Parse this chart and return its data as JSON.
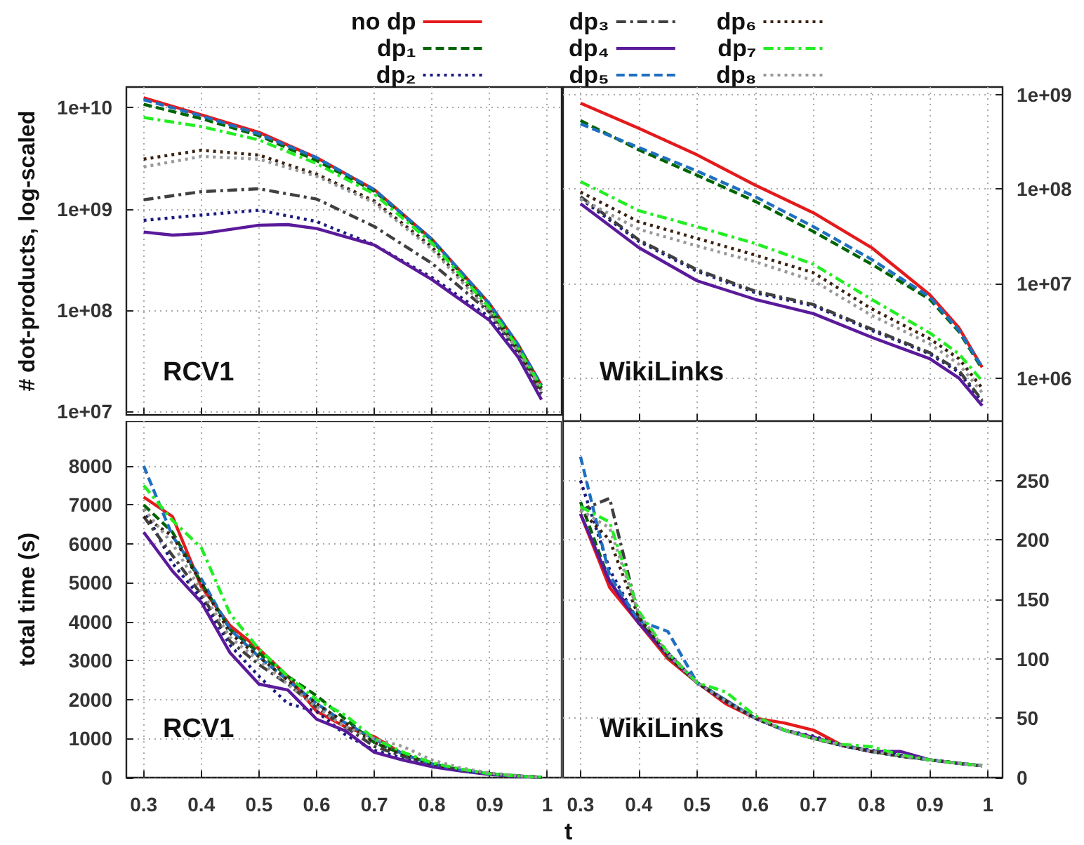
{
  "chart_data": [
    {
      "type": "line",
      "ylabel": "# dot-products, log-scaled",
      "annotations": [
        "RCV1"
      ],
      "legend": "top",
      "grid": true,
      "log": true,
      "tick_labels": "y",
      "xlim": [
        0.27,
        1.025
      ],
      "xticks": [
        0.3,
        0.4,
        0.5,
        0.6,
        0.7,
        0.8,
        0.9,
        1
      ],
      "ylim": [
        9200000.0,
        16000000000.0
      ],
      "yticks": [
        {
          "value": 10000000.0,
          "label": "1e+07"
        },
        {
          "value": 100000000.0,
          "label": "1e+08"
        },
        {
          "value": 1000000000.0,
          "label": "1e+09"
        },
        {
          "value": 10000000000.0,
          "label": "1e+10"
        }
      ],
      "x": [
        0.3,
        0.4,
        0.5,
        0.6,
        0.7,
        0.8,
        0.9,
        0.95,
        0.99
      ],
      "series": [
        {
          "name": "no dp",
          "color": "#e41a1c",
          "line_style": "solid",
          "values": [
            12500000000.0,
            8500000000.0,
            5700000000.0,
            3200000000.0,
            1550000000.0,
            500000000.0,
            115000000.0,
            45000000.0,
            18000000.0
          ]
        },
        {
          "name": "dp₁",
          "color": "#006400",
          "line_style": "dashed",
          "values": [
            10800000000.0,
            7800000000.0,
            5300000000.0,
            3000000000.0,
            1500000000.0,
            490000000.0,
            110000000.0,
            44000000.0,
            17000000.0
          ]
        },
        {
          "name": "dp₂",
          "color": "#1a1a80",
          "line_style": "dotted",
          "values": [
            770000000.0,
            870000000.0,
            970000000.0,
            750000000.0,
            440000000.0,
            210000000.0,
            85000000.0,
            36000000.0,
            14000000.0
          ]
        },
        {
          "name": "dp₃",
          "color": "#404040",
          "line_style": "dashdot",
          "values": [
            1230000000.0,
            1480000000.0,
            1580000000.0,
            1250000000.0,
            670000000.0,
            290000000.0,
            95000000.0,
            39000000.0,
            15000000.0
          ]
        },
        {
          "name": "dp₄",
          "color": "#5a1a9a",
          "line_style": "solid",
          "x": [
            0.3,
            0.35,
            0.4,
            0.5,
            0.55,
            0.6,
            0.7,
            0.8,
            0.9,
            0.95,
            0.99
          ],
          "values": [
            590000000.0,
            550000000.0,
            570000000.0,
            690000000.0,
            700000000.0,
            640000000.0,
            440000000.0,
            200000000.0,
            79000000.0,
            34000000.0,
            13000000.0
          ]
        },
        {
          "name": "dp₅",
          "color": "#1f6fc0",
          "line_style": "dashed",
          "values": [
            12000000000.0,
            8300000000.0,
            5500000000.0,
            3200000000.0,
            1550000000.0,
            500000000.0,
            115000000.0,
            45000000.0,
            18000000.0
          ]
        },
        {
          "name": "dp₆",
          "color": "#3b2210",
          "line_style": "dotted",
          "values": [
            3100000000.0,
            3800000000.0,
            3400000000.0,
            2200000000.0,
            1200000000.0,
            420000000.0,
            100000000.0,
            40000000.0,
            16000000.0
          ]
        },
        {
          "name": "dp₇",
          "color": "#22ee22",
          "line_style": "dashdot",
          "values": [
            8000000000.0,
            6500000000.0,
            4800000000.0,
            2800000000.0,
            1400000000.0,
            460000000.0,
            105000000.0,
            42000000.0,
            17000000.0
          ]
        },
        {
          "name": "dp₈",
          "color": "#999999",
          "line_style": "dotted",
          "values": [
            2600000000.0,
            3300000000.0,
            3100000000.0,
            2100000000.0,
            1150000000.0,
            400000000.0,
            95000000.0,
            39000000.0,
            16000000.0
          ]
        }
      ]
    },
    {
      "type": "line",
      "annotations": [
        "WikiLinks"
      ],
      "grid": true,
      "log": "y2",
      "tick_labels": "y",
      "xlim": [
        0.27,
        1.025
      ],
      "xticks": [
        0.3,
        0.4,
        0.5,
        0.6,
        0.7,
        0.8,
        0.9,
        1
      ],
      "y2lim": [
        350000.0,
        1200000000.0
      ],
      "y2ticks": [
        {
          "value": 1000000.0,
          "label": "1e+06"
        },
        {
          "value": 10000000.0,
          "label": "1e+07"
        },
        {
          "value": 100000000.0,
          "label": "1e+08"
        },
        {
          "value": 1000000000.0,
          "label": "1e+09"
        }
      ],
      "x": [
        0.3,
        0.4,
        0.5,
        0.6,
        0.7,
        0.8,
        0.9,
        0.95,
        0.99
      ],
      "series": [
        {
          "name": "no dp",
          "color": "#e41a1c",
          "line_style": "solid",
          "axis": "y2",
          "values": [
            810000000.0,
            440000000.0,
            230000000.0,
            110000000.0,
            56000000.0,
            24000000.0,
            7600000.0,
            3400000.0,
            1300000.0
          ]
        },
        {
          "name": "dp₁",
          "color": "#006400",
          "line_style": "dashed",
          "axis": "y2",
          "values": [
            530000000.0,
            260000000.0,
            140000000.0,
            74000000.0,
            35500000.0,
            16000000.0,
            6800000.0,
            3100000.0,
            1250000.0
          ]
        },
        {
          "name": "dp₂",
          "color": "#1a1a80",
          "line_style": "dotted",
          "axis": "y2",
          "values": [
            79000000.0,
            28000000.0,
            13500000.0,
            8000000.0,
            5800000.0,
            3200000.0,
            1800000.0,
            1150000.0,
            560000.0
          ]
        },
        {
          "name": "dp₃",
          "color": "#404040",
          "line_style": "dashdot",
          "axis": "y2",
          "values": [
            83000000.0,
            29000000.0,
            14000000.0,
            8300000.0,
            6000000.0,
            3300000.0,
            1850000.0,
            1200000.0,
            580000.0
          ]
        },
        {
          "name": "dp₄",
          "color": "#5a1a9a",
          "line_style": "solid",
          "axis": "y2",
          "values": [
            70000000.0,
            24000000.0,
            10700000.0,
            6800000.0,
            4800000.0,
            2700000.0,
            1600000.0,
            1000000.0,
            510000.0
          ]
        },
        {
          "name": "dp₅",
          "color": "#1f6fc0",
          "line_style": "dashed",
          "axis": "y2",
          "values": [
            490000000.0,
            275000000.0,
            155000000.0,
            83000000.0,
            40000000.0,
            18000000.0,
            7200000.0,
            3200000.0,
            1300000.0
          ]
        },
        {
          "name": "dp₆",
          "color": "#3b2210",
          "line_style": "dotted",
          "axis": "y2",
          "values": [
            93000000.0,
            45000000.0,
            30000000.0,
            20000000.0,
            13000000.0,
            5400000.0,
            2600000.0,
            1600000.0,
            780000.0
          ]
        },
        {
          "name": "dp₇",
          "color": "#22ee22",
          "line_style": "dashdot",
          "axis": "y2",
          "values": [
            120000000.0,
            59000000.0,
            40000000.0,
            26500000.0,
            16000000.0,
            6800000.0,
            3000000.0,
            1800000.0,
            930000.0
          ]
        },
        {
          "name": "dp₈",
          "color": "#999999",
          "line_style": "dotted",
          "axis": "y2",
          "values": [
            79000000.0,
            37500000.0,
            25000000.0,
            17000000.0,
            10700000.0,
            4600000.0,
            2300000.0,
            1400000.0,
            700000.0
          ]
        }
      ]
    },
    {
      "type": "line",
      "ylabel": "total time (s)",
      "annotations": [
        "RCV1"
      ],
      "grid": true,
      "xlim": [
        0.27,
        1.025
      ],
      "xticks": [
        0.3,
        0.4,
        0.5,
        0.6,
        0.7,
        0.8,
        0.9,
        1
      ],
      "ylim": [
        0,
        9150
      ],
      "yticks": [
        0,
        1000,
        2000,
        3000,
        4000,
        5000,
        6000,
        7000,
        8000
      ],
      "x": [
        0.3,
        0.35,
        0.4,
        0.45,
        0.5,
        0.55,
        0.6,
        0.65,
        0.7,
        0.75,
        0.8,
        0.85,
        0.9,
        0.95,
        0.99
      ],
      "series": [
        {
          "name": "no dp",
          "color": "#e41a1c",
          "line_style": "solid",
          "values": [
            7200,
            6700,
            4900,
            3900,
            3300,
            2600,
            1700,
            1300,
            1050,
            600,
            350,
            null,
            null,
            null,
            null
          ]
        },
        {
          "name": "dp₁",
          "color": "#006400",
          "line_style": "dashed",
          "values": [
            7000,
            6300,
            5000,
            3800,
            3200,
            2600,
            2100,
            1500,
            900,
            600,
            350,
            200,
            100,
            40,
            10
          ]
        },
        {
          "name": "dp₂",
          "color": "#1a1a80",
          "line_style": "dotted",
          "values": [
            6900,
            5500,
            4600,
            3400,
            2600,
            1900,
            1700,
            1100,
            700,
            500,
            300,
            180,
            90,
            40,
            10
          ]
        },
        {
          "name": "dp₃",
          "color": "#404040",
          "line_style": "dashdot",
          "values": [
            6700,
            5700,
            4700,
            3500,
            2900,
            2400,
            1800,
            1300,
            800,
            550,
            330,
            190,
            90,
            40,
            10
          ]
        },
        {
          "name": "dp₄",
          "color": "#5a1a9a",
          "line_style": "solid",
          "values": [
            6300,
            5300,
            4500,
            3200,
            2400,
            2250,
            1500,
            1200,
            650,
            450,
            280,
            170,
            80,
            30,
            10
          ]
        },
        {
          "name": "dp₅",
          "color": "#1f6fc0",
          "line_style": "dashed",
          "values": [
            8000,
            6200,
            5100,
            3800,
            3100,
            2500,
            1900,
            1400,
            1000,
            600,
            350,
            200,
            100,
            40,
            10
          ]
        },
        {
          "name": "dp₆",
          "color": "#3b2210",
          "line_style": "dotted",
          "values": [
            6700,
            6200,
            5000,
            3700,
            3100,
            2500,
            1900,
            1400,
            900,
            600,
            350,
            200,
            100,
            40,
            10
          ]
        },
        {
          "name": "dp₇",
          "color": "#22ee22",
          "line_style": "dashdot",
          "values": [
            7500,
            6600,
            5900,
            4200,
            3300,
            2600,
            2000,
            1600,
            1000,
            650,
            380,
            220,
            100,
            40,
            10
          ]
        },
        {
          "name": "dp₈",
          "color": "#999999",
          "line_style": "dotted",
          "values": [
            6900,
            6000,
            4800,
            3600,
            3000,
            2400,
            1800,
            1300,
            1000,
            800,
            450,
            250,
            120,
            50,
            10
          ]
        }
      ]
    },
    {
      "type": "line",
      "xlabel": "t",
      "annotations": [
        "WikiLinks"
      ],
      "grid": true,
      "xlim": [
        0.27,
        1.025
      ],
      "xticks": [
        0.3,
        0.4,
        0.5,
        0.6,
        0.7,
        0.8,
        0.9,
        1
      ],
      "y2lim": [
        0,
        300
      ],
      "y2ticks": [
        0,
        50,
        100,
        150,
        200,
        250
      ],
      "x": [
        0.3,
        0.35,
        0.4,
        0.45,
        0.5,
        0.55,
        0.6,
        0.65,
        0.7,
        0.75,
        0.8,
        0.85,
        0.9,
        0.95,
        0.99
      ],
      "series": [
        {
          "name": "no dp",
          "color": "#e41a1c",
          "line_style": "solid",
          "axis": "y2",
          "values": [
            222,
            160,
            130,
            100,
            80,
            62,
            50,
            46,
            40,
            27,
            22,
            null,
            null,
            null,
            null
          ]
        },
        {
          "name": "dp₁",
          "color": "#006400",
          "line_style": "dashed",
          "axis": "y2",
          "values": [
            232,
            165,
            132,
            102,
            80,
            64,
            50,
            40,
            33,
            27,
            22,
            18,
            15,
            12,
            10
          ]
        },
        {
          "name": "dp₂",
          "color": "#1a1a80",
          "line_style": "dotted",
          "axis": "y2",
          "values": [
            250,
            175,
            130,
            105,
            80,
            65,
            50,
            40,
            35,
            27,
            23,
            19,
            15,
            12,
            10
          ]
        },
        {
          "name": "dp₃",
          "color": "#404040",
          "line_style": "dashdot",
          "axis": "y2",
          "values": [
            225,
            235,
            135,
            105,
            80,
            65,
            50,
            40,
            33,
            27,
            22,
            18,
            15,
            12,
            10
          ]
        },
        {
          "name": "dp₄",
          "color": "#5a1a9a",
          "line_style": "solid",
          "axis": "y2",
          "values": [
            222,
            165,
            130,
            103,
            80,
            64,
            50,
            40,
            34,
            27,
            22,
            22,
            15,
            12,
            10
          ]
        },
        {
          "name": "dp₅",
          "color": "#1f6fc0",
          "line_style": "dashed",
          "axis": "y2",
          "values": [
            270,
            170,
            132,
            123,
            80,
            65,
            50,
            40,
            33,
            27,
            22,
            18,
            15,
            12,
            10
          ]
        },
        {
          "name": "dp₆",
          "color": "#3b2210",
          "line_style": "dotted",
          "axis": "y2",
          "values": [
            225,
            200,
            135,
            103,
            80,
            64,
            50,
            40,
            33,
            27,
            22,
            18,
            15,
            12,
            10
          ]
        },
        {
          "name": "dp₇",
          "color": "#22ee22",
          "line_style": "dashdot",
          "axis": "y2",
          "values": [
            228,
            215,
            140,
            105,
            80,
            72,
            52,
            40,
            33,
            28,
            26,
            19,
            15,
            12,
            10
          ]
        },
        {
          "name": "dp₈",
          "color": "#999999",
          "line_style": "dotted",
          "axis": "y2",
          "values": [
            225,
            210,
            138,
            104,
            80,
            64,
            50,
            40,
            33,
            27,
            22,
            18,
            15,
            12,
            10
          ]
        }
      ]
    }
  ]
}
